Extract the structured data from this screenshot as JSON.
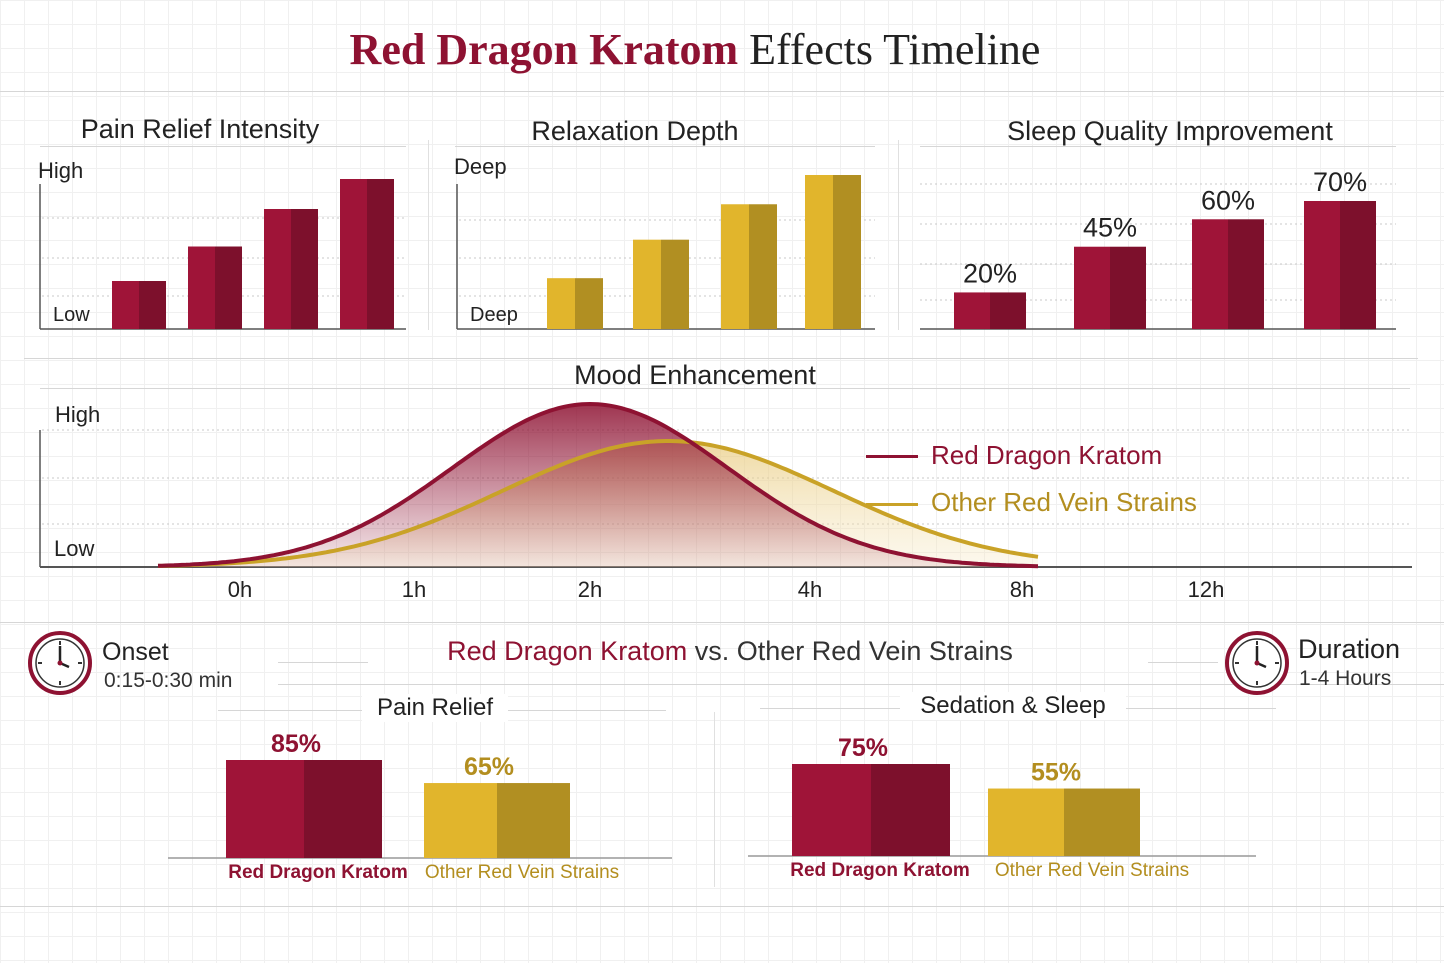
{
  "title": {
    "accent": "Red Dragon Kratom",
    "rest": "Effects Timeline"
  },
  "colors": {
    "red": "#8e1232",
    "red_dark": "#7a0d2a",
    "gold": "#c9a227",
    "gold_light": "#dcbc55"
  },
  "chart_data": [
    {
      "type": "bar",
      "title": "Pain Relief Intensity",
      "ylabel_top": "High",
      "ylabel_bottom": "Low",
      "values": [
        0.32,
        0.55,
        0.8,
        1.0
      ],
      "color": "#8e1232"
    },
    {
      "type": "bar",
      "title": "Relaxation Depth",
      "ylabel_top": "Deep",
      "ylabel_bottom": "Deep",
      "values": [
        0.33,
        0.58,
        0.81,
        1.0
      ],
      "color": "#c9a227"
    },
    {
      "type": "bar",
      "title": "Sleep Quality Improvement",
      "values": [
        20,
        45,
        60,
        70
      ],
      "data_labels": [
        "20%",
        "45%",
        "60%",
        "70%"
      ],
      "color": "#8e1232"
    },
    {
      "type": "area",
      "title": "Mood Enhancement",
      "ylabel_top": "High",
      "ylabel_bottom": "Low",
      "x_ticks": [
        "0h",
        "1h",
        "2h",
        "4h",
        "8h",
        "12h"
      ],
      "series": [
        {
          "name": "Red Dragon Kratom",
          "color": "#8e1232"
        },
        {
          "name": "Other Red Vein Strains",
          "color": "#c9a227"
        }
      ]
    },
    {
      "type": "bar",
      "title": "Pain Relief",
      "categories": [
        "Red Dragon Kratom",
        "Other Red Vein Strains"
      ],
      "values": [
        85,
        65
      ],
      "data_labels": [
        "85%",
        "65%"
      ]
    },
    {
      "type": "bar",
      "title": "Sedation & Sleep",
      "categories": [
        "Red Dragon Kratom",
        "Other Red Vein Strains"
      ],
      "values": [
        75,
        55
      ],
      "data_labels": [
        "75%",
        "55%"
      ]
    }
  ],
  "comparison": {
    "accent": "Red Dragon Kratom",
    "rest": "vs. Other Red Vein Strains"
  },
  "onset": {
    "label": "Onset",
    "value": "0:15-0:30 min",
    "icon": "clock-icon"
  },
  "duration": {
    "label": "Duration",
    "value": "1-4 Hours",
    "icon": "clock-icon"
  }
}
